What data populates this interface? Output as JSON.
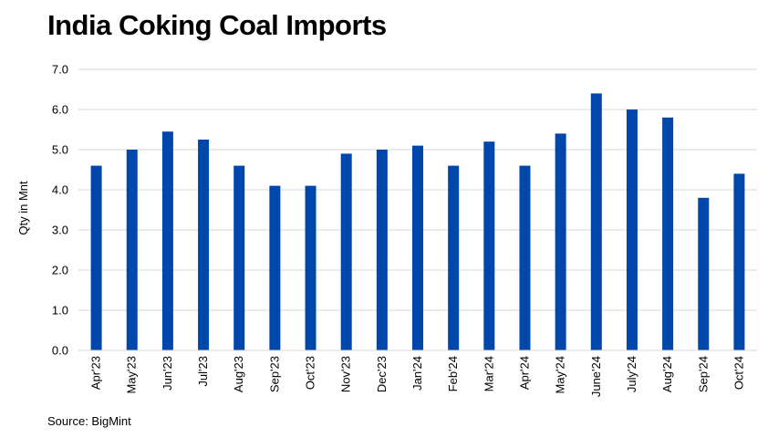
{
  "chart_data": {
    "type": "bar",
    "title": "India Coking Coal Imports",
    "xlabel": "",
    "ylabel": "Qty in Mnt",
    "ylim": [
      0,
      7
    ],
    "yticks": [
      "0.0",
      "1.0",
      "2.0",
      "3.0",
      "4.0",
      "5.0",
      "6.0",
      "7.0"
    ],
    "grid": true,
    "legend": "none",
    "bar_color": "#0047AB",
    "categories": [
      "Apr'23",
      "May'23",
      "Jun'23",
      "Jul'23",
      "Aug'23",
      "Sep'23",
      "Oct'23",
      "Nov'23",
      "Dec'23",
      "Jan'24",
      "Feb'24",
      "Mar'24",
      "Apr'24",
      "May'24",
      "June'24",
      "July'24",
      "Aug'24",
      "Sep'24",
      "Oct'24"
    ],
    "values": [
      4.6,
      5.0,
      5.45,
      5.25,
      4.6,
      4.1,
      4.1,
      4.9,
      5.0,
      5.1,
      4.6,
      5.2,
      4.6,
      5.4,
      6.4,
      6.0,
      5.8,
      3.8,
      4.4
    ],
    "source": "Source: BigMint"
  }
}
